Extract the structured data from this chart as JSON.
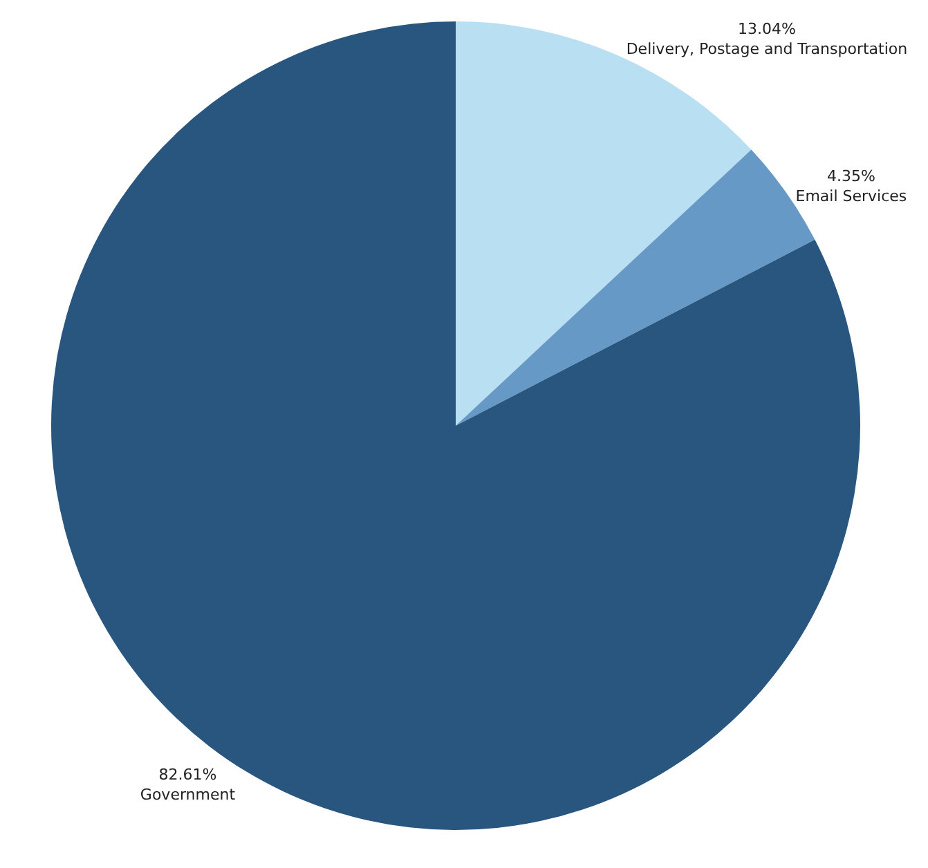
{
  "chart_data": {
    "type": "pie",
    "categories": [
      "Delivery, Postage and Transportation",
      "Email Services",
      "Government"
    ],
    "values": [
      13.04,
      4.35,
      82.61
    ],
    "value_labels": [
      "13.04%",
      "4.35%",
      "82.61%"
    ],
    "colors": [
      "#b9dff3",
      "#6799c7",
      "#28567f"
    ]
  }
}
